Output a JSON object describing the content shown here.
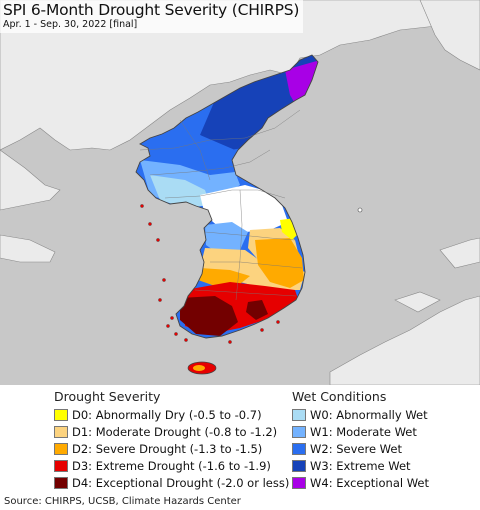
{
  "title": "SPI 6-Month Drought Severity (CHIRPS)",
  "subtitle": "Apr. 1 - Sep. 30, 2022 [final]",
  "legend": {
    "drought": {
      "heading": "Drought Severity",
      "items": [
        {
          "label": "D0: Abnormally Dry (-0.5 to -0.7)",
          "color": "#ffff00"
        },
        {
          "label": "D1: Moderate Drought (-0.8 to -1.2)",
          "color": "#fcd37f"
        },
        {
          "label": "D2: Severe Drought (-1.3 to -1.5)",
          "color": "#ffaa00"
        },
        {
          "label": "D3: Extreme Drought (-1.6 to -1.9)",
          "color": "#e60000"
        },
        {
          "label": "D4: Exceptional Drought (-2.0 or less)",
          "color": "#730000"
        }
      ]
    },
    "wet": {
      "heading": "Wet Conditions",
      "items": [
        {
          "label": "W0: Abnormally Wet",
          "color": "#aadcf4"
        },
        {
          "label": "W1: Moderate Wet",
          "color": "#73b2ff"
        },
        {
          "label": "W2: Severe Wet",
          "color": "#2a6ef0"
        },
        {
          "label": "W3: Extreme Wet",
          "color": "#1642b8"
        },
        {
          "label": "W4: Exceptional Wet",
          "color": "#a800e6"
        }
      ]
    }
  },
  "map_colors": {
    "sea": "#c8c8c8",
    "outside_land": "#ebebeb",
    "normal": "#ffffff",
    "boundary": "#444444"
  },
  "source": "Source: CHIRPS, UCSB, Climate Hazards Center"
}
